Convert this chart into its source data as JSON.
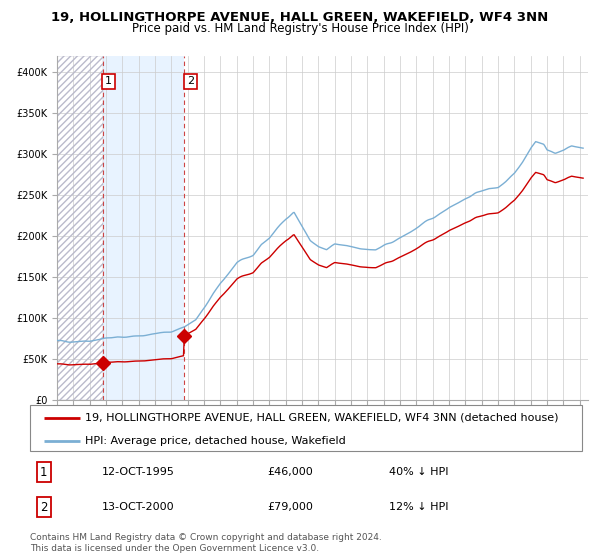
{
  "title": "19, HOLLINGTHORPE AVENUE, HALL GREEN, WAKEFIELD, WF4 3NN",
  "subtitle": "Price paid vs. HM Land Registry's House Price Index (HPI)",
  "xlim_start": 1993.0,
  "xlim_end": 2025.5,
  "ylim": [
    0,
    420000
  ],
  "yticks": [
    0,
    50000,
    100000,
    150000,
    200000,
    250000,
    300000,
    350000,
    400000
  ],
  "ytick_labels": [
    "£0",
    "£50K",
    "£100K",
    "£150K",
    "£200K",
    "£250K",
    "£300K",
    "£350K",
    "£400K"
  ],
  "hpi_color": "#7bafd4",
  "price_color": "#cc0000",
  "marker_color": "#cc0000",
  "bg_hatch_color": "#ddeeff",
  "sale1_date": 1995.79,
  "sale1_price": 46000,
  "sale2_date": 2000.79,
  "sale2_price": 79000,
  "legend_price_label": "19, HOLLINGTHORPE AVENUE, HALL GREEN, WAKEFIELD, WF4 3NN (detached house)",
  "legend_hpi_label": "HPI: Average price, detached house, Wakefield",
  "annotation1_date": "12-OCT-1995",
  "annotation1_price": "£46,000",
  "annotation1_pct": "40% ↓ HPI",
  "annotation2_date": "13-OCT-2000",
  "annotation2_price": "£79,000",
  "annotation2_pct": "12% ↓ HPI",
  "footer": "Contains HM Land Registry data © Crown copyright and database right 2024.\nThis data is licensed under the Open Government Licence v3.0.",
  "title_fontsize": 9.5,
  "subtitle_fontsize": 8.5,
  "tick_fontsize": 7,
  "legend_fontsize": 8,
  "footer_fontsize": 6.5
}
